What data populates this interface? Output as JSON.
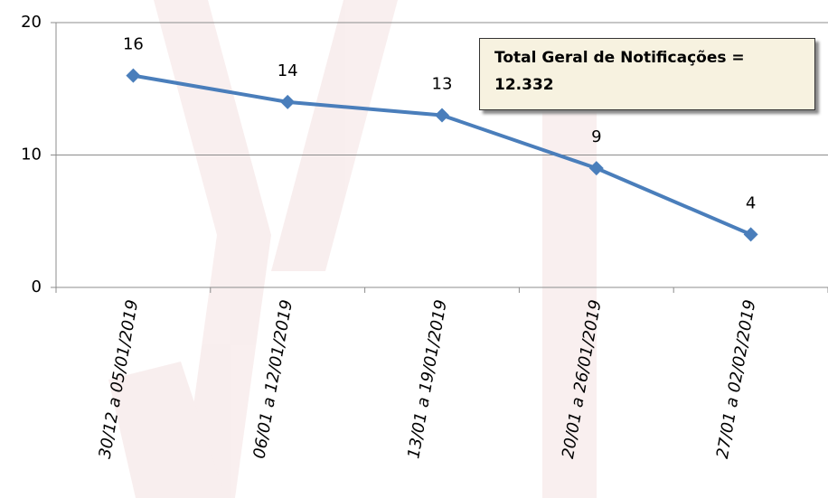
{
  "chart_data": {
    "type": "line",
    "categories": [
      "30/12 a 05/01/2019",
      "06/01 a 12/01/2019",
      "13/01 a 19/01/2019",
      "20/01 a 26/01/2019",
      "27/01 a 02/02/2019"
    ],
    "values": [
      16,
      14,
      13,
      9,
      4
    ],
    "color": "#4a7ebb",
    "ylim": [
      0,
      20
    ],
    "yticks": [
      0,
      10,
      20
    ],
    "grid": true,
    "annotation": "Total Geral de Notificações = 12.332"
  }
}
